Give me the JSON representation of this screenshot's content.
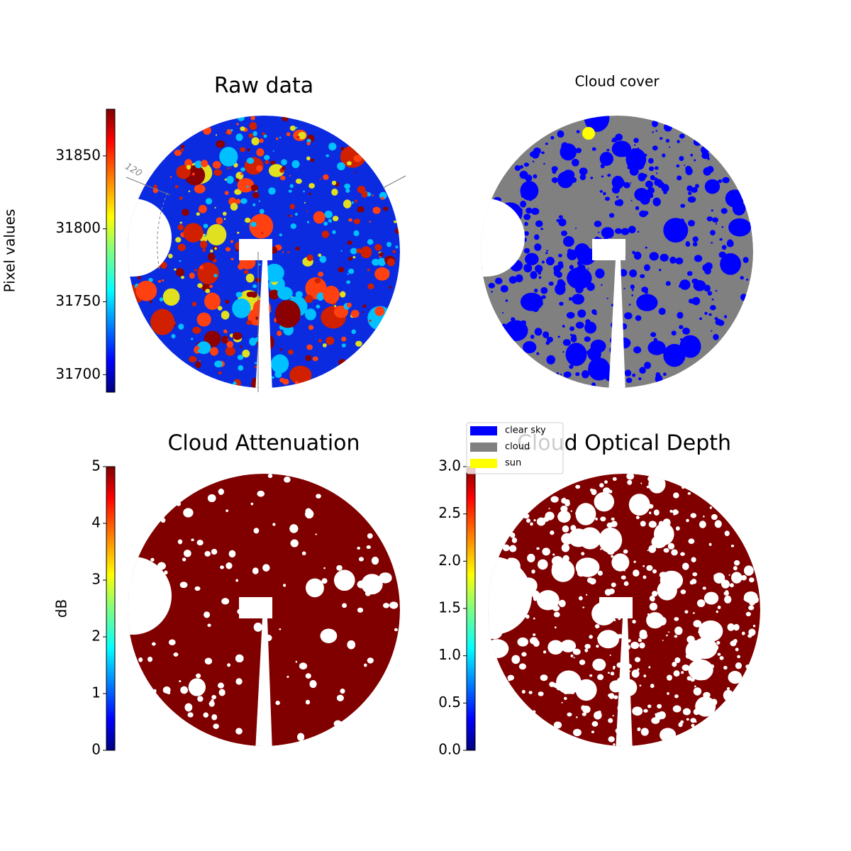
{
  "chart_data": [
    {
      "type": "image",
      "title": "Raw data",
      "colormap": "jet",
      "colorbar": {
        "label": "Pixel values",
        "ylim": [
          31688,
          31882
        ],
        "yticks": [
          31700,
          31750,
          31800,
          31850
        ]
      },
      "annotations": [
        "120"
      ]
    },
    {
      "type": "image",
      "title": "Cloud cover",
      "series": [
        {
          "name": "clear sky",
          "color": "#0000ff"
        },
        {
          "name": "cloud",
          "color": "#808080"
        },
        {
          "name": "sun",
          "color": "#ffff00"
        }
      ]
    },
    {
      "type": "image",
      "title": "Cloud Attenuation",
      "colormap": "jet",
      "colorbar": {
        "label": "dB",
        "ylim": [
          0,
          5
        ],
        "yticks": [
          0,
          1,
          2,
          3,
          4,
          5
        ]
      }
    },
    {
      "type": "image",
      "title": "Cloud Optical Depth",
      "colormap": "jet",
      "colorbar": {
        "ylim": [
          0,
          3
        ],
        "yticks": [
          {
            "value": 0,
            "label": "0.0"
          },
          0.5,
          {
            "value": 1,
            "label": "1.0"
          },
          1.5,
          {
            "value": 2,
            "label": "2.0"
          },
          2.5,
          {
            "value": 3,
            "label": "3.0"
          }
        ]
      }
    }
  ]
}
